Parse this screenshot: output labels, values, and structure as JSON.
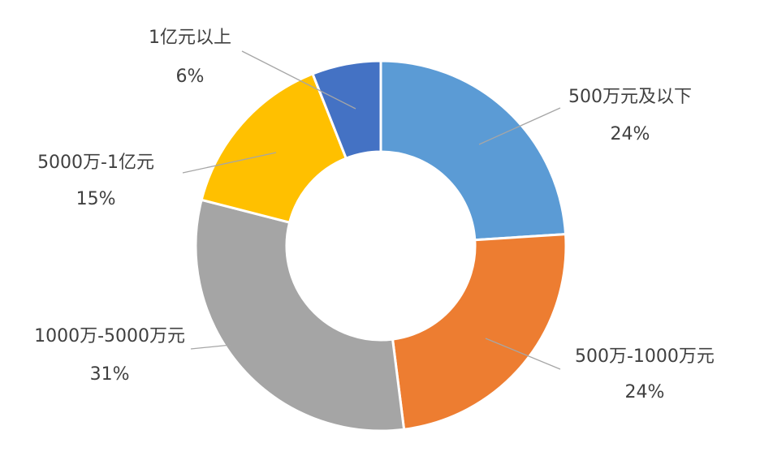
{
  "chart_data": {
    "type": "pie",
    "variant": "donut",
    "title": "",
    "legend": "none",
    "slices": [
      {
        "label": "500万元及以下",
        "value": 24,
        "value_label": "24%",
        "color": "#5B9BD5"
      },
      {
        "label": "500万-1000万元",
        "value": 24,
        "value_label": "24%",
        "color": "#ED7D31"
      },
      {
        "label": "1000万-5000万元",
        "value": 31,
        "value_label": "31%",
        "color": "#A5A5A5"
      },
      {
        "label": "5000万-1亿元",
        "value": 15,
        "value_label": "15%",
        "color": "#FFC000"
      },
      {
        "label": "1亿元以上",
        "value": 6,
        "value_label": "6%",
        "color": "#4472C4"
      }
    ]
  }
}
